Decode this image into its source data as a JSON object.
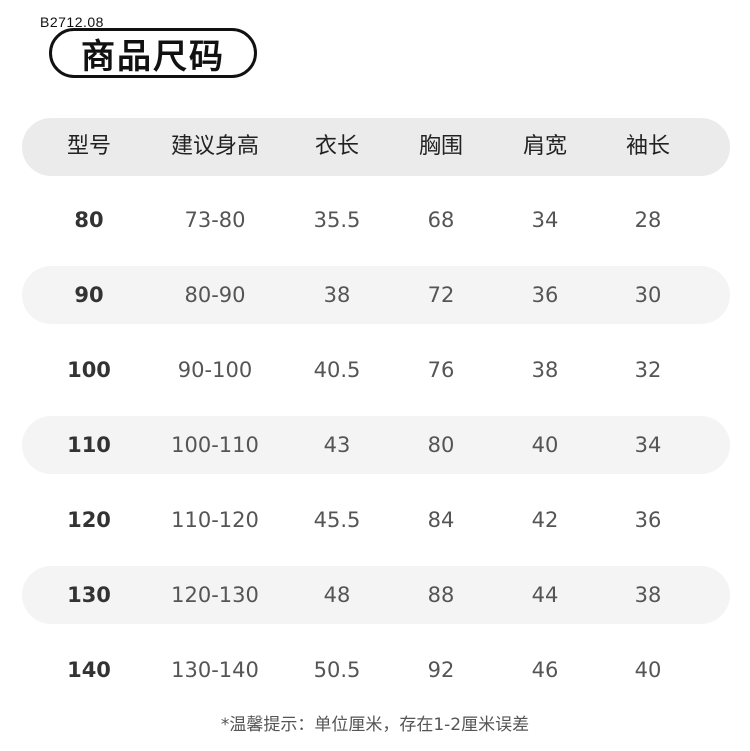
{
  "code": "B2712.08",
  "title": "商品尺码",
  "columns": [
    "型号",
    "建议身高",
    "衣长",
    "胸围",
    "肩宽",
    "袖长"
  ],
  "rows": [
    [
      "80",
      "73-80",
      "35.5",
      "68",
      "34",
      "28"
    ],
    [
      "90",
      "80-90",
      "38",
      "72",
      "36",
      "30"
    ],
    [
      "100",
      "90-100",
      "40.5",
      "76",
      "38",
      "32"
    ],
    [
      "110",
      "100-110",
      "43",
      "80",
      "40",
      "34"
    ],
    [
      "120",
      "110-120",
      "45.5",
      "84",
      "42",
      "36"
    ],
    [
      "130",
      "120-130",
      "48",
      "88",
      "44",
      "38"
    ],
    [
      "140",
      "130-140",
      "50.5",
      "92",
      "46",
      "40"
    ]
  ],
  "note": "*温馨提示：单位厘米，存在1-2厘米误差"
}
